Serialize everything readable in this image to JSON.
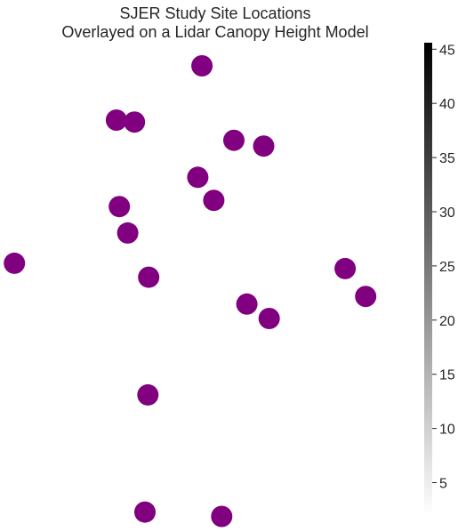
{
  "chart_data": {
    "type": "scatter",
    "title_lines": [
      "SJER Study Site Locations",
      "Overlayed on a Lidar Canopy Height Model"
    ],
    "marker_color": "#800080",
    "background_color": "#ffffff",
    "grid": false,
    "axes_visible": false,
    "x_range": [
      0,
      1
    ],
    "y_range": [
      0,
      1
    ],
    "points": [
      {
        "x": 0.477,
        "y": 0.963
      },
      {
        "x": 0.273,
        "y": 0.85
      },
      {
        "x": 0.316,
        "y": 0.846
      },
      {
        "x": 0.553,
        "y": 0.808
      },
      {
        "x": 0.624,
        "y": 0.796
      },
      {
        "x": 0.467,
        "y": 0.731
      },
      {
        "x": 0.505,
        "y": 0.683
      },
      {
        "x": 0.28,
        "y": 0.67
      },
      {
        "x": 0.3,
        "y": 0.615
      },
      {
        "x": 0.03,
        "y": 0.552
      },
      {
        "x": 0.818,
        "y": 0.541
      },
      {
        "x": 0.35,
        "y": 0.523
      },
      {
        "x": 0.867,
        "y": 0.483
      },
      {
        "x": 0.584,
        "y": 0.467
      },
      {
        "x": 0.637,
        "y": 0.437
      },
      {
        "x": 0.348,
        "y": 0.278
      },
      {
        "x": 0.341,
        "y": 0.034
      },
      {
        "x": 0.524,
        "y": 0.025
      }
    ],
    "colorbar": {
      "min": 2,
      "max": 45.6,
      "ticks": [
        5,
        10,
        15,
        20,
        25,
        30,
        35,
        40,
        45
      ],
      "tick_labels": [
        "5",
        "10",
        "15",
        "20",
        "25",
        "30",
        "35",
        "40",
        "45"
      ],
      "colormap": "Greys",
      "color_low": "#ffffff",
      "color_high": "#000000"
    }
  }
}
